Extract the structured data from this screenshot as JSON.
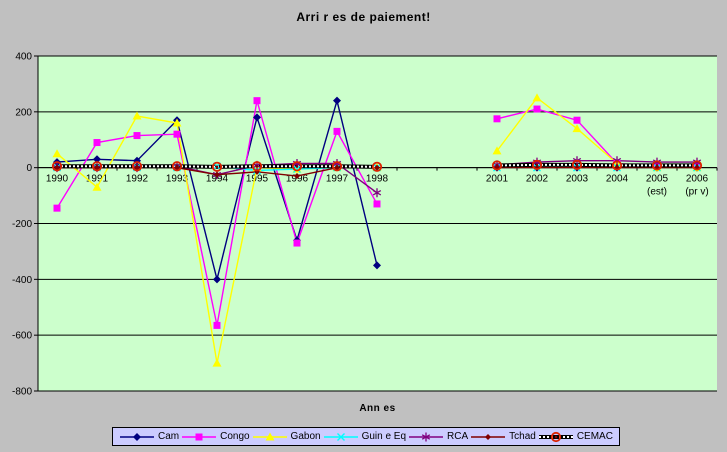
{
  "chart_data": {
    "type": "line",
    "title": "Arri r es de paiement!",
    "xlabel": "Ann es",
    "ylim": [
      -800,
      400
    ],
    "yticks": [
      400,
      200,
      0,
      -200,
      -400,
      -600,
      -800
    ],
    "grid": true,
    "legend_position": "bottom",
    "page_bg": "#C0C0C0",
    "plot_bg": "#CCFFCC",
    "legend_bg": "#CCCCFF",
    "axis_color": "#000000",
    "axis_slots": 17,
    "categories": [
      {
        "label": "1990",
        "slot": 0
      },
      {
        "label": "1991",
        "slot": 1
      },
      {
        "label": "1992",
        "slot": 2
      },
      {
        "label": "1993",
        "slot": 3
      },
      {
        "label": "1994",
        "slot": 4
      },
      {
        "label": "1995",
        "slot": 5
      },
      {
        "label": "1996",
        "slot": 6
      },
      {
        "label": "1997",
        "slot": 7
      },
      {
        "label": "1998",
        "slot": 8
      },
      {
        "label": "2001",
        "slot": 11
      },
      {
        "label": "2002",
        "slot": 12
      },
      {
        "label": "2003",
        "slot": 13
      },
      {
        "label": "2004",
        "slot": 14
      },
      {
        "label": "2005",
        "slot": 15,
        "sublabel": "(est)"
      },
      {
        "label": "2006",
        "slot": 16,
        "sublabel": "(pr v)"
      }
    ],
    "series": [
      {
        "name": "Cam",
        "color": "#000080",
        "marker": "diamond",
        "values": [
          20,
          30,
          25,
          170,
          -400,
          180,
          -260,
          240,
          -350,
          0,
          0,
          0,
          0,
          0,
          0
        ]
      },
      {
        "name": "Congo",
        "color": "#FF00FF",
        "marker": "square",
        "values": [
          -145,
          90,
          115,
          120,
          -565,
          240,
          -270,
          130,
          -130,
          175,
          210,
          170,
          15,
          5,
          5
        ]
      },
      {
        "name": "Gabon",
        "color": "#FFFF00",
        "marker": "triangle",
        "values": [
          50,
          -70,
          185,
          160,
          -700,
          0,
          -5,
          0,
          0,
          60,
          250,
          140,
          15,
          0,
          0
        ]
      },
      {
        "name": "Guin e Eq",
        "color": "#00FFFF",
        "marker": "x",
        "values": [
          0,
          0,
          0,
          0,
          5,
          -10,
          -5,
          0,
          0,
          0,
          0,
          0,
          0,
          0,
          0
        ]
      },
      {
        "name": "RCA",
        "color": "#800080",
        "marker": "asterisk",
        "values": [
          0,
          0,
          0,
          5,
          -25,
          8,
          15,
          15,
          -90,
          10,
          20,
          25,
          25,
          20,
          20
        ]
      },
      {
        "name": "Tchad",
        "color": "#800000",
        "marker": "small-diamond",
        "values": [
          0,
          0,
          0,
          0,
          -25,
          -15,
          -30,
          0,
          0,
          0,
          0,
          0,
          0,
          0,
          0
        ]
      },
      {
        "name": "CEMAC",
        "color": "#000000",
        "marker": "ring",
        "line_style": "hatch",
        "marker_color": "#DD2200",
        "values": [
          5,
          5,
          5,
          5,
          3,
          5,
          5,
          5,
          3,
          8,
          10,
          10,
          8,
          8,
          8
        ]
      }
    ]
  }
}
